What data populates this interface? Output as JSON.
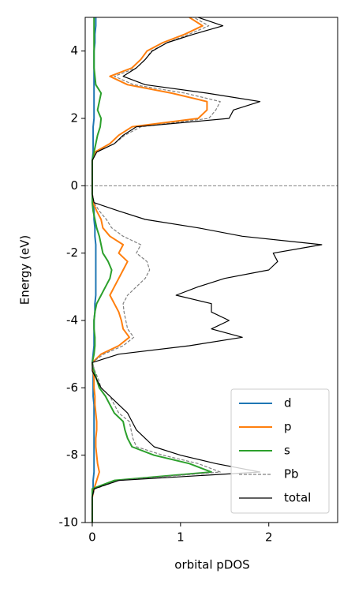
{
  "chart_data": {
    "type": "line",
    "orientation": "horizontal",
    "xlabel": "orbital pDOS",
    "ylabel": "Energy (eV)",
    "xlim": [
      -0.08,
      2.78
    ],
    "ylim": [
      -10,
      5
    ],
    "xticks": [
      0,
      1,
      2
    ],
    "yticks": [
      -10,
      -8,
      -6,
      -4,
      -2,
      0,
      2,
      4
    ],
    "hlines": [
      0
    ],
    "legend": "lower right",
    "y": [
      -10,
      -9.75,
      -9.5,
      -9.25,
      -9,
      -8.75,
      -8.5,
      -8.25,
      -8,
      -7.75,
      -7.5,
      -7.25,
      -7,
      -6.75,
      -6.5,
      -6.25,
      -6,
      -5.75,
      -5.5,
      -5.25,
      -5,
      -4.75,
      -4.5,
      -4.25,
      -4,
      -3.75,
      -3.5,
      -3.25,
      -3,
      -2.75,
      -2.5,
      -2.25,
      -2,
      -1.75,
      -1.5,
      -1.25,
      -1,
      -0.75,
      -0.5,
      -0.25,
      0,
      0.25,
      0.5,
      0.75,
      1,
      1.25,
      1.5,
      1.75,
      2,
      2.25,
      2.5,
      2.75,
      3,
      3.25,
      3.5,
      3.75,
      4,
      4.25,
      4.5,
      4.75,
      5
    ],
    "series": [
      {
        "name": "d",
        "color": "#1f77b4",
        "dash": false,
        "values": [
          0,
          0,
          0,
          0,
          0.01,
          0.01,
          0.02,
          0.02,
          0.02,
          0.02,
          0.02,
          0.02,
          0.02,
          0.02,
          0.02,
          0.01,
          0.01,
          0.01,
          0.01,
          0,
          0.01,
          0.02,
          0.02,
          0.02,
          0.02,
          0.03,
          0.03,
          0.04,
          0.04,
          0.04,
          0.04,
          0.04,
          0.04,
          0.04,
          0.03,
          0.03,
          0.02,
          0.02,
          0.01,
          0,
          0,
          0,
          0,
          0,
          0.01,
          0.01,
          0.01,
          0.01,
          0.02,
          0.02,
          0.02,
          0.02,
          0.02,
          0.02,
          0.02,
          0.02,
          0.02,
          0.03,
          0.03,
          0.04,
          0.04
        ]
      },
      {
        "name": "p",
        "color": "#ff7f0e",
        "dash": false,
        "values": [
          0,
          0,
          0,
          0,
          0.02,
          0.05,
          0.08,
          0.06,
          0.05,
          0.04,
          0.04,
          0.05,
          0.05,
          0.04,
          0.03,
          0.03,
          0.02,
          0.02,
          0.01,
          0,
          0.1,
          0.3,
          0.42,
          0.35,
          0.33,
          0.3,
          0.25,
          0.2,
          0.25,
          0.3,
          0.35,
          0.4,
          0.3,
          0.35,
          0.2,
          0.12,
          0.1,
          0.05,
          0.01,
          0,
          0,
          0,
          0,
          0,
          0.03,
          0.2,
          0.3,
          0.45,
          1.2,
          1.3,
          1.3,
          0.9,
          0.4,
          0.2,
          0.45,
          0.55,
          0.62,
          0.8,
          1.05,
          1.25,
          1.1
        ]
      },
      {
        "name": "s",
        "color": "#2ca02c",
        "dash": false,
        "values": [
          0,
          0,
          0,
          0,
          0,
          0.25,
          1.35,
          1.1,
          0.7,
          0.45,
          0.4,
          0.37,
          0.35,
          0.25,
          0.2,
          0.15,
          0.08,
          0.05,
          0.02,
          0,
          0.02,
          0.03,
          0.03,
          0.02,
          0.02,
          0.03,
          0.05,
          0.1,
          0.15,
          0.2,
          0.22,
          0.18,
          0.12,
          0.1,
          0.08,
          0.05,
          0.03,
          0.01,
          0,
          0,
          0,
          0,
          0,
          0,
          0.02,
          0.04,
          0.06,
          0.09,
          0.1,
          0.06,
          0.08,
          0.1,
          0.04,
          0.03,
          0.02,
          0.02,
          0.02,
          0.02,
          0.02,
          0.02,
          0.02
        ]
      },
      {
        "name": "Pb",
        "color": "#808080",
        "dash": true,
        "values": [
          0,
          0,
          0,
          0,
          0.03,
          0.3,
          1.45,
          1.2,
          0.8,
          0.5,
          0.46,
          0.44,
          0.42,
          0.3,
          0.25,
          0.2,
          0.1,
          0.07,
          0.03,
          0,
          0.13,
          0.35,
          0.47,
          0.4,
          0.38,
          0.36,
          0.35,
          0.4,
          0.5,
          0.6,
          0.65,
          0.62,
          0.5,
          0.55,
          0.35,
          0.22,
          0.16,
          0.08,
          0.02,
          0,
          0,
          0,
          0,
          0,
          0.05,
          0.25,
          0.37,
          0.55,
          1.32,
          1.4,
          1.45,
          1.05,
          0.47,
          0.25,
          0.5,
          0.6,
          0.67,
          0.85,
          1.1,
          1.32,
          1.15
        ]
      },
      {
        "name": "total",
        "color": "#000000",
        "dash": false,
        "values": [
          0,
          0,
          0,
          0,
          0.02,
          0.3,
          1.9,
          1.4,
          1.0,
          0.7,
          0.6,
          0.5,
          0.45,
          0.4,
          0.3,
          0.2,
          0.1,
          0.05,
          0,
          0,
          0.3,
          1.1,
          1.7,
          1.35,
          1.55,
          1.35,
          1.35,
          0.95,
          1.2,
          1.5,
          2.0,
          2.1,
          2.05,
          2.6,
          1.7,
          1.2,
          0.6,
          0.3,
          0.02,
          0,
          0,
          0,
          0,
          0,
          0.05,
          0.25,
          0.35,
          0.5,
          1.55,
          1.6,
          1.9,
          1.3,
          0.6,
          0.35,
          0.5,
          0.6,
          0.68,
          0.85,
          1.15,
          1.48,
          1.2
        ]
      }
    ]
  }
}
